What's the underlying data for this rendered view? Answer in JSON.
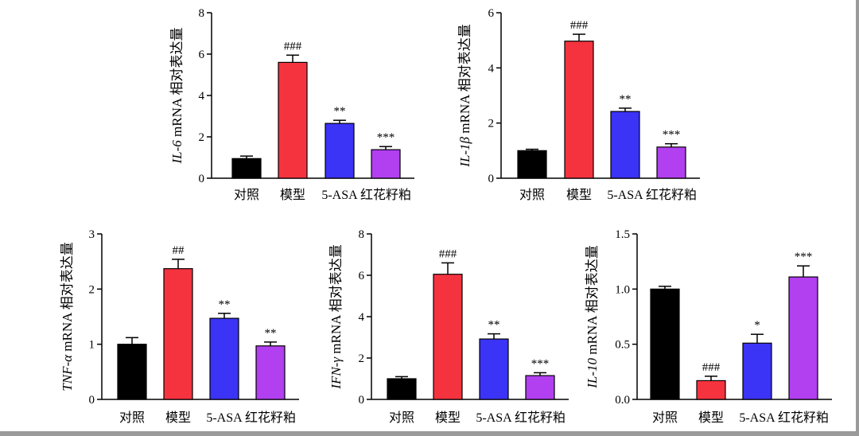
{
  "chart_data": [
    {
      "type": "bar",
      "gene": "IL-6",
      "ylabel_suffix": " mRNA 相对表达量",
      "categories": [
        "对照",
        "模型",
        "5-ASA",
        "红花籽粕"
      ],
      "values": [
        0.95,
        5.6,
        2.65,
        1.38
      ],
      "errors": [
        0.12,
        0.35,
        0.15,
        0.15
      ],
      "significance": [
        "",
        "###",
        "**",
        "***"
      ],
      "colors": [
        "#000000",
        "#f5333f",
        "#3b33f5",
        "#b23ff0"
      ],
      "ylim": [
        0,
        8
      ],
      "yticks": [
        0,
        2,
        4,
        6,
        8
      ],
      "ytick_labels": [
        "0",
        "2",
        "4",
        "6",
        "8"
      ]
    },
    {
      "type": "bar",
      "gene": "IL-1β",
      "ylabel_suffix": " mRNA 相对表达量",
      "categories": [
        "对照",
        "模型",
        "5-ASA",
        "红花籽粕"
      ],
      "values": [
        1.0,
        4.97,
        2.42,
        1.13
      ],
      "errors": [
        0.05,
        0.25,
        0.12,
        0.12
      ],
      "significance": [
        "",
        "###",
        "**",
        "***"
      ],
      "colors": [
        "#000000",
        "#f5333f",
        "#3b33f5",
        "#b23ff0"
      ],
      "ylim": [
        0,
        6
      ],
      "yticks": [
        0,
        2,
        4,
        6
      ],
      "ytick_labels": [
        "0",
        "2",
        "4",
        "6"
      ]
    },
    {
      "type": "bar",
      "gene": "TNF-α",
      "ylabel_suffix": " mRNA 相对表达量",
      "categories": [
        "对照",
        "模型",
        "5-ASA",
        "红花籽粕"
      ],
      "values": [
        1.0,
        2.37,
        1.47,
        0.97
      ],
      "errors": [
        0.12,
        0.17,
        0.09,
        0.07
      ],
      "significance": [
        "",
        "##",
        "**",
        "**"
      ],
      "colors": [
        "#000000",
        "#f5333f",
        "#3b33f5",
        "#b23ff0"
      ],
      "ylim": [
        0,
        3
      ],
      "yticks": [
        0,
        1,
        2,
        3
      ],
      "ytick_labels": [
        "0",
        "1",
        "2",
        "3"
      ]
    },
    {
      "type": "bar",
      "gene": "IFN-γ",
      "ylabel_suffix": " mRNA 相对表达量",
      "categories": [
        "对照",
        "模型",
        "5-ASA",
        "红花籽粕"
      ],
      "values": [
        1.0,
        6.05,
        2.92,
        1.15
      ],
      "errors": [
        0.1,
        0.55,
        0.25,
        0.14
      ],
      "significance": [
        "",
        "###",
        "**",
        "***"
      ],
      "colors": [
        "#000000",
        "#f5333f",
        "#3b33f5",
        "#b23ff0"
      ],
      "ylim": [
        0,
        8
      ],
      "yticks": [
        0,
        2,
        4,
        6,
        8
      ],
      "ytick_labels": [
        "0",
        "2",
        "4",
        "6",
        "8"
      ]
    },
    {
      "type": "bar",
      "gene": "IL-10",
      "ylabel_suffix": " mRNA 相对表达量",
      "categories": [
        "对照",
        "模型",
        "5-ASA",
        "红花籽粕"
      ],
      "values": [
        1.0,
        0.17,
        0.51,
        1.11
      ],
      "errors": [
        0.025,
        0.04,
        0.08,
        0.1
      ],
      "significance": [
        "",
        "###",
        "*",
        "***"
      ],
      "colors": [
        "#000000",
        "#f5333f",
        "#3b33f5",
        "#b23ff0"
      ],
      "ylim": [
        0,
        1.5
      ],
      "yticks": [
        0,
        0.5,
        1.0,
        1.5
      ],
      "ytick_labels": [
        "0.0",
        "0.5",
        "1.0",
        "1.5"
      ]
    }
  ]
}
